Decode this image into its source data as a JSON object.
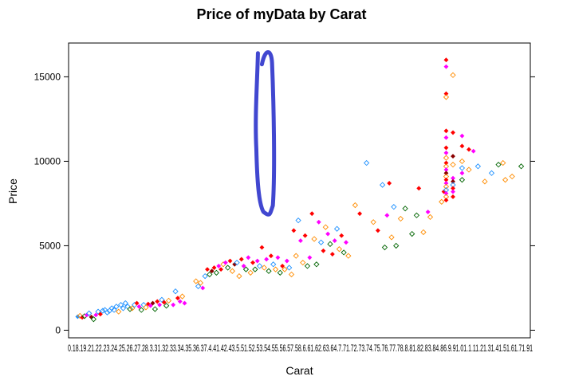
{
  "chart_data": {
    "type": "scatter",
    "title": "Price of myData by Carat",
    "xlabel": "Carat",
    "ylabel": "Price",
    "ylim": [
      -450,
      17000
    ],
    "yticks": [
      0,
      5000,
      10000,
      15000
    ],
    "xtick_text": "0.18.19.21.22.23.24.25.26.27.28.3.31.32.33.34.35.36.37.4.41.42.43.5.51.52.53.54.55.56.57.58.6.61.62.63.64.7.71.72.73.74.75.76.77.78.8.81.82.83.84.86.9.91.01.1.11.21.31.41.51.61.71.91",
    "grid": false,
    "legend": "none",
    "palette": [
      "#1e90ff",
      "#ff8c00",
      "#006400",
      "#ff00ff",
      "#ff0000",
      "#8b0000"
    ],
    "highlight": {
      "shape": "hand-drawn loop",
      "color": "#4147d0",
      "x_range": [
        0.99,
        1.01
      ],
      "y_range": [
        7000,
        16400
      ]
    },
    "points": [
      [
        0.18,
        800,
        0,
        "f"
      ],
      [
        0.19,
        850,
        1,
        "o"
      ],
      [
        0.2,
        760,
        4,
        "f"
      ],
      [
        0.21,
        830,
        2,
        "o"
      ],
      [
        0.22,
        900,
        3,
        "f"
      ],
      [
        0.23,
        1000,
        0,
        "o"
      ],
      [
        0.24,
        780,
        5,
        "f"
      ],
      [
        0.25,
        650,
        2,
        "o"
      ],
      [
        0.26,
        900,
        3,
        "f"
      ],
      [
        0.27,
        1100,
        0,
        "o"
      ],
      [
        0.28,
        950,
        4,
        "f"
      ],
      [
        0.29,
        1150,
        0,
        "o"
      ],
      [
        0.3,
        1200,
        0,
        "o"
      ],
      [
        0.31,
        1050,
        0,
        "o"
      ],
      [
        0.32,
        1150,
        0,
        "o"
      ],
      [
        0.33,
        1300,
        0,
        "o"
      ],
      [
        0.34,
        1200,
        0,
        "o"
      ],
      [
        0.35,
        1400,
        0,
        "o"
      ],
      [
        0.36,
        1100,
        1,
        "o"
      ],
      [
        0.37,
        1500,
        0,
        "o"
      ],
      [
        0.38,
        1300,
        0,
        "o"
      ],
      [
        0.39,
        1600,
        0,
        "o"
      ],
      [
        0.4,
        1400,
        0,
        "o"
      ],
      [
        0.41,
        1250,
        2,
        "o"
      ],
      [
        0.42,
        1300,
        1,
        "o"
      ],
      [
        0.43,
        1500,
        0,
        "o"
      ],
      [
        0.44,
        1600,
        4,
        "f"
      ],
      [
        0.45,
        1400,
        3,
        "f"
      ],
      [
        0.46,
        1200,
        2,
        "o"
      ],
      [
        0.47,
        1500,
        0,
        "o"
      ],
      [
        0.48,
        1350,
        1,
        "o"
      ],
      [
        0.49,
        1550,
        4,
        "f"
      ],
      [
        0.5,
        1450,
        3,
        "f"
      ],
      [
        0.51,
        1600,
        5,
        "f"
      ],
      [
        0.52,
        1250,
        2,
        "o"
      ],
      [
        0.53,
        1700,
        4,
        "f"
      ],
      [
        0.54,
        1500,
        3,
        "f"
      ],
      [
        0.55,
        1800,
        0,
        "o"
      ],
      [
        0.56,
        1650,
        4,
        "f"
      ],
      [
        0.57,
        1450,
        2,
        "o"
      ],
      [
        0.58,
        1750,
        1,
        "o"
      ],
      [
        0.6,
        1500,
        3,
        "f"
      ],
      [
        0.61,
        2300,
        0,
        "o"
      ],
      [
        0.62,
        1900,
        4,
        "f"
      ],
      [
        0.63,
        1700,
        3,
        "f"
      ],
      [
        0.64,
        2000,
        1,
        "o"
      ],
      [
        0.65,
        1600,
        3,
        "f"
      ],
      [
        0.7,
        2900,
        1,
        "o"
      ],
      [
        0.71,
        2600,
        0,
        "o"
      ],
      [
        0.72,
        2800,
        1,
        "o"
      ],
      [
        0.73,
        2500,
        3,
        "f"
      ],
      [
        0.74,
        3200,
        0,
        "o"
      ],
      [
        0.75,
        3600,
        4,
        "f"
      ],
      [
        0.76,
        3300,
        2,
        "o"
      ],
      [
        0.77,
        3500,
        5,
        "f"
      ],
      [
        0.78,
        3700,
        4,
        "f"
      ],
      [
        0.79,
        3400,
        2,
        "o"
      ],
      [
        0.8,
        3800,
        3,
        "f"
      ],
      [
        0.81,
        3600,
        4,
        "f"
      ],
      [
        0.82,
        3900,
        1,
        "o"
      ],
      [
        0.83,
        4000,
        3,
        "f"
      ],
      [
        0.84,
        3700,
        2,
        "o"
      ],
      [
        0.85,
        4100,
        4,
        "f"
      ],
      [
        0.86,
        3500,
        1,
        "o"
      ],
      [
        0.87,
        3900,
        5,
        "f"
      ],
      [
        0.88,
        4000,
        0,
        "o"
      ],
      [
        0.89,
        3200,
        1,
        "o"
      ],
      [
        0.9,
        4200,
        4,
        "f"
      ],
      [
        0.91,
        3800,
        3,
        "f"
      ],
      [
        0.92,
        3600,
        2,
        "o"
      ],
      [
        0.93,
        4300,
        3,
        "f"
      ],
      [
        0.94,
        3400,
        1,
        "o"
      ],
      [
        0.95,
        4000,
        4,
        "f"
      ],
      [
        0.96,
        3600,
        2,
        "o"
      ],
      [
        0.97,
        4100,
        3,
        "f"
      ],
      [
        0.98,
        3800,
        0,
        "o"
      ],
      [
        0.99,
        4900,
        4,
        "f"
      ],
      [
        1.0,
        3700,
        1,
        "o"
      ],
      [
        1.01,
        4200,
        3,
        "f"
      ],
      [
        1.02,
        3500,
        2,
        "o"
      ],
      [
        1.03,
        4400,
        4,
        "f"
      ],
      [
        1.04,
        3900,
        0,
        "o"
      ],
      [
        1.05,
        3600,
        1,
        "o"
      ],
      [
        1.06,
        4300,
        3,
        "f"
      ],
      [
        1.07,
        3400,
        2,
        "o"
      ],
      [
        1.08,
        3800,
        4,
        "f"
      ],
      [
        1.09,
        3600,
        1,
        "o"
      ],
      [
        1.1,
        4100,
        3,
        "f"
      ],
      [
        1.11,
        3700,
        0,
        "o"
      ],
      [
        1.12,
        3300,
        1,
        "o"
      ],
      [
        1.13,
        5900,
        4,
        "f"
      ],
      [
        1.14,
        4400,
        1,
        "o"
      ],
      [
        1.15,
        6500,
        0,
        "o"
      ],
      [
        1.16,
        5300,
        3,
        "f"
      ],
      [
        1.17,
        4000,
        1,
        "o"
      ],
      [
        1.18,
        5600,
        4,
        "f"
      ],
      [
        1.19,
        3800,
        2,
        "o"
      ],
      [
        1.2,
        4300,
        3,
        "f"
      ],
      [
        1.21,
        6900,
        4,
        "f"
      ],
      [
        1.22,
        5400,
        1,
        "o"
      ],
      [
        1.23,
        3900,
        2,
        "o"
      ],
      [
        1.24,
        6400,
        3,
        "f"
      ],
      [
        1.25,
        5200,
        0,
        "o"
      ],
      [
        1.26,
        4700,
        4,
        "f"
      ],
      [
        1.27,
        6100,
        1,
        "o"
      ],
      [
        1.28,
        5700,
        3,
        "f"
      ],
      [
        1.29,
        5100,
        2,
        "o"
      ],
      [
        1.3,
        4500,
        4,
        "f"
      ],
      [
        1.31,
        5300,
        3,
        "f"
      ],
      [
        1.32,
        6000,
        0,
        "o"
      ],
      [
        1.33,
        4800,
        1,
        "o"
      ],
      [
        1.34,
        5600,
        4,
        "f"
      ],
      [
        1.35,
        4600,
        2,
        "o"
      ],
      [
        1.36,
        5200,
        3,
        "f"
      ],
      [
        1.37,
        4400,
        1,
        "o"
      ],
      [
        1.4,
        7400,
        1,
        "o"
      ],
      [
        1.42,
        6900,
        4,
        "f"
      ],
      [
        1.45,
        9900,
        0,
        "o"
      ],
      [
        1.48,
        6400,
        1,
        "o"
      ],
      [
        1.5,
        5900,
        4,
        "f"
      ],
      [
        1.52,
        8600,
        0,
        "o"
      ],
      [
        1.53,
        4900,
        2,
        "o"
      ],
      [
        1.54,
        6800,
        3,
        "f"
      ],
      [
        1.55,
        8700,
        4,
        "f"
      ],
      [
        1.56,
        5500,
        1,
        "o"
      ],
      [
        1.57,
        7300,
        0,
        "o"
      ],
      [
        1.58,
        5000,
        2,
        "o"
      ],
      [
        1.6,
        6600,
        1,
        "o"
      ],
      [
        1.62,
        7200,
        2,
        "o"
      ],
      [
        1.65,
        5700,
        2,
        "o"
      ],
      [
        1.67,
        6800,
        2,
        "o"
      ],
      [
        1.68,
        8400,
        4,
        "f"
      ],
      [
        1.7,
        5800,
        1,
        "o"
      ],
      [
        1.72,
        7000,
        3,
        "f"
      ],
      [
        1.73,
        6700,
        1,
        "o"
      ],
      [
        1.78,
        7600,
        1,
        "o"
      ],
      [
        1.79,
        8200,
        4,
        "f"
      ],
      [
        1.8,
        16000,
        4,
        "f"
      ],
      [
        1.8,
        15600,
        3,
        "f"
      ],
      [
        1.8,
        14000,
        4,
        "f"
      ],
      [
        1.8,
        13800,
        1,
        "o"
      ],
      [
        1.8,
        11800,
        4,
        "f"
      ],
      [
        1.8,
        11400,
        3,
        "f"
      ],
      [
        1.8,
        10800,
        4,
        "f"
      ],
      [
        1.8,
        10500,
        3,
        "f"
      ],
      [
        1.8,
        10200,
        1,
        "o"
      ],
      [
        1.8,
        9900,
        4,
        "f"
      ],
      [
        1.8,
        9700,
        1,
        "o"
      ],
      [
        1.8,
        9500,
        3,
        "f"
      ],
      [
        1.8,
        9300,
        5,
        "f"
      ],
      [
        1.8,
        9100,
        1,
        "o"
      ],
      [
        1.8,
        8900,
        4,
        "f"
      ],
      [
        1.8,
        8700,
        3,
        "f"
      ],
      [
        1.8,
        8500,
        1,
        "o"
      ],
      [
        1.8,
        8300,
        0,
        "o"
      ],
      [
        1.8,
        8100,
        3,
        "f"
      ],
      [
        1.8,
        7900,
        1,
        "o"
      ],
      [
        1.8,
        7700,
        4,
        "f"
      ],
      [
        1.83,
        15100,
        1,
        "o"
      ],
      [
        1.83,
        11700,
        4,
        "f"
      ],
      [
        1.83,
        10300,
        5,
        "f"
      ],
      [
        1.83,
        9800,
        1,
        "o"
      ],
      [
        1.83,
        9000,
        3,
        "f"
      ],
      [
        1.83,
        8800,
        5,
        "f"
      ],
      [
        1.83,
        8600,
        0,
        "o"
      ],
      [
        1.83,
        8400,
        4,
        "f"
      ],
      [
        1.83,
        8200,
        3,
        "f"
      ],
      [
        1.83,
        7900,
        4,
        "f"
      ],
      [
        1.87,
        11500,
        3,
        "f"
      ],
      [
        1.87,
        10900,
        4,
        "f"
      ],
      [
        1.87,
        10000,
        1,
        "o"
      ],
      [
        1.87,
        9600,
        0,
        "o"
      ],
      [
        1.87,
        9300,
        3,
        "f"
      ],
      [
        1.87,
        8900,
        2,
        "o"
      ],
      [
        1.9,
        10700,
        4,
        "f"
      ],
      [
        1.9,
        9500,
        1,
        "o"
      ],
      [
        1.92,
        10600,
        3,
        "f"
      ],
      [
        1.94,
        9700,
        0,
        "o"
      ],
      [
        1.97,
        8800,
        1,
        "o"
      ],
      [
        2.0,
        9300,
        0,
        "o"
      ],
      [
        2.03,
        9800,
        2,
        "o"
      ],
      [
        2.05,
        9900,
        1,
        "o"
      ],
      [
        2.06,
        8900,
        1,
        "o"
      ],
      [
        2.09,
        9100,
        1,
        "o"
      ],
      [
        2.13,
        9700,
        2,
        "o"
      ]
    ]
  }
}
